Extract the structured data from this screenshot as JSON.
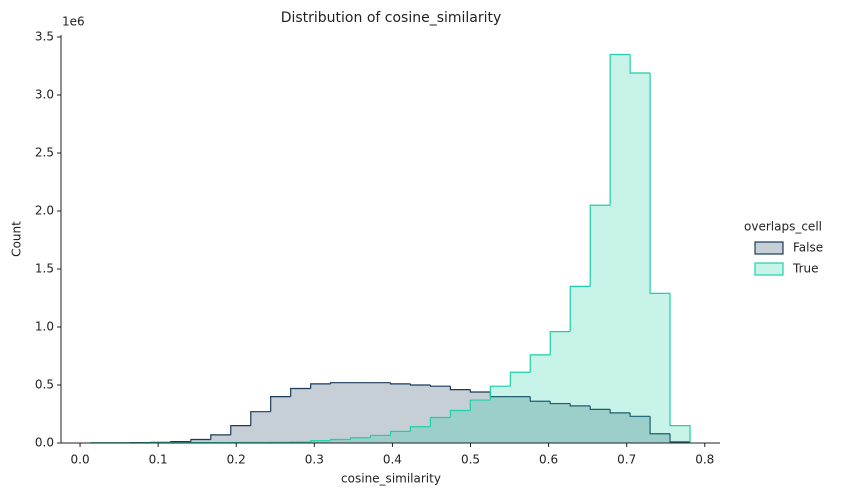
{
  "chart_data": {
    "type": "histogram",
    "title": "Distribution of cosine_similarity",
    "xlabel": "cosine_similarity",
    "ylabel": "Count",
    "y_offset_label": "1e6",
    "legend_title": "overlaps_cell",
    "legend": "right",
    "bins": [
      0.014,
      0.0396,
      0.0651,
      0.0907,
      0.1163,
      0.1419,
      0.1674,
      0.193,
      0.2186,
      0.2441,
      0.2697,
      0.2953,
      0.3208,
      0.3464,
      0.372,
      0.3976,
      0.4231,
      0.4487,
      0.4743,
      0.4998,
      0.5254,
      0.551,
      0.5765,
      0.6021,
      0.6277,
      0.6533,
      0.6788,
      0.7044,
      0.73,
      0.7555,
      0.7811
    ],
    "series": [
      {
        "name": "False",
        "color": "#1b3a5c",
        "values": [
          1000,
          1000,
          3000,
          6000,
          12000,
          30000,
          70000,
          150000,
          270000,
          400000,
          470000,
          510000,
          520000,
          520000,
          520000,
          510000,
          500000,
          490000,
          460000,
          440000,
          400000,
          400000,
          360000,
          340000,
          320000,
          290000,
          260000,
          230000,
          80000,
          10000
        ]
      },
      {
        "name": "True",
        "color": "#1fcfa8",
        "values": [
          1000,
          1000,
          1000,
          2000,
          2000,
          3000,
          3000,
          4000,
          5000,
          6000,
          8000,
          20000,
          30000,
          45000,
          65000,
          100000,
          140000,
          220000,
          280000,
          370000,
          490000,
          610000,
          760000,
          960000,
          1350000,
          2050000,
          3350000,
          3190000,
          1290000,
          150000
        ]
      }
    ],
    "xlim": [
      -0.0244,
      0.8195
    ],
    "ylim": [
      0,
      3517500
    ],
    "xticks": [
      {
        "value": 0,
        "label": "0.0"
      },
      0.1,
      0.2,
      0.3,
      0.4,
      0.5,
      0.6,
      0.7,
      0.8
    ],
    "yticks": [
      {
        "value": 0,
        "label": "0.0"
      },
      {
        "value": 500000,
        "label": "0.5"
      },
      {
        "value": 1000000,
        "label": "1.0"
      },
      {
        "value": 1500000,
        "label": "1.5"
      },
      {
        "value": 2000000,
        "label": "2.0"
      },
      {
        "value": 2500000,
        "label": "2.5"
      },
      {
        "value": 3000000,
        "label": "3.0"
      },
      {
        "value": 3500000,
        "label": "3.5"
      }
    ],
    "grid": false
  }
}
